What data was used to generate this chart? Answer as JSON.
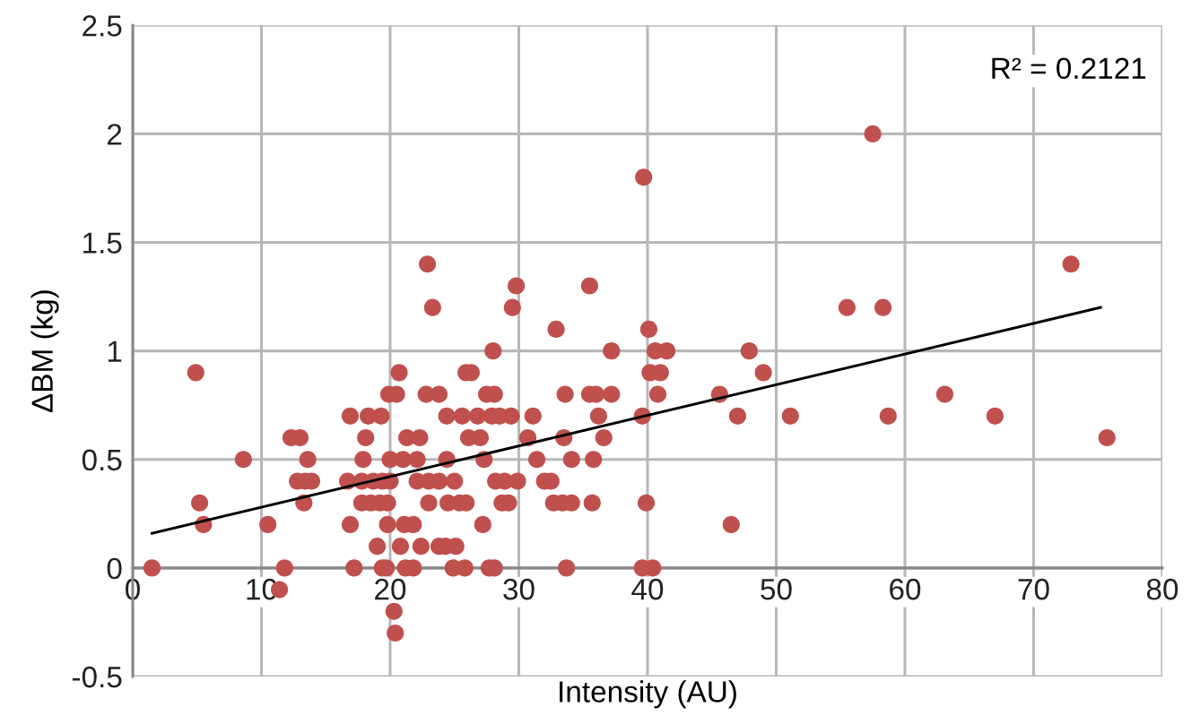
{
  "chart_data": {
    "type": "scatter",
    "xlabel": "Intensity (AU)",
    "ylabel": "ΔBM (kg)",
    "xlim": [
      0,
      80
    ],
    "xticks": [
      0,
      10,
      20,
      30,
      40,
      50,
      60,
      70,
      80
    ],
    "ylim": [
      -0.5,
      2.5
    ],
    "yticks": [
      -0.5,
      0,
      0.5,
      1,
      1.5,
      2,
      2.5
    ],
    "grid": true,
    "annotations": [
      "R² = 0.2121"
    ],
    "series": [
      {
        "marker": "circle",
        "color": "#c0504d",
        "x": [
          1.5,
          11.8,
          17.2,
          19.4,
          19.7,
          21.2,
          21.8,
          24.9,
          25.8,
          27.7,
          28.1,
          33.7,
          39.6,
          40.4,
          11.4,
          20.3,
          20.4,
          19.0,
          20.8,
          22.4,
          23.8,
          24.3,
          25.1,
          16.9,
          19.8,
          21.1,
          21.8,
          27.2,
          46.5,
          10.5,
          5.5,
          5.2,
          13.3,
          17.8,
          18.5,
          19.2,
          19.8,
          23.0,
          24.5,
          25.4,
          25.9,
          28.7,
          29.2,
          32.7,
          33.4,
          34.1,
          35.7,
          39.9,
          12.8,
          13.4,
          13.9,
          16.7,
          17.8,
          18.7,
          19.4,
          20.0,
          22.1,
          23.0,
          23.8,
          25.0,
          28.2,
          28.9,
          29.9,
          32.0,
          32.5,
          8.6,
          13.6,
          17.9,
          20.0,
          21.0,
          22.1,
          24.4,
          27.3,
          31.4,
          34.1,
          35.8,
          12.3,
          13.0,
          18.1,
          21.3,
          22.3,
          26.1,
          27.0,
          30.7,
          33.5,
          36.6,
          75.7,
          16.9,
          18.3,
          19.3,
          24.4,
          25.6,
          26.8,
          27.9,
          28.5,
          29.4,
          31.1,
          36.2,
          39.6,
          47.0,
          51.1,
          58.7,
          67.0,
          19.9,
          20.5,
          22.8,
          23.8,
          27.5,
          28.1,
          33.6,
          35.5,
          36.0,
          37.2,
          40.8,
          45.6,
          63.1,
          4.9,
          20.7,
          25.9,
          26.3,
          40.2,
          41.0,
          49.0,
          28.0,
          37.2,
          40.6,
          41.5,
          47.9,
          32.9,
          40.1,
          23.3,
          29.5,
          55.5,
          58.3,
          29.8,
          35.5,
          22.9,
          72.9,
          39.7,
          57.5
        ],
        "values": [
          0,
          0,
          0,
          0,
          0,
          0,
          0,
          0,
          0,
          0,
          0,
          0,
          0,
          0,
          -0.1,
          -0.2,
          -0.3,
          0.1,
          0.1,
          0.1,
          0.1,
          0.1,
          0.1,
          0.2,
          0.2,
          0.2,
          0.2,
          0.2,
          0.2,
          0.2,
          0.2,
          0.3,
          0.3,
          0.3,
          0.3,
          0.3,
          0.3,
          0.3,
          0.3,
          0.3,
          0.3,
          0.3,
          0.3,
          0.3,
          0.3,
          0.3,
          0.3,
          0.3,
          0.4,
          0.4,
          0.4,
          0.4,
          0.4,
          0.4,
          0.4,
          0.4,
          0.4,
          0.4,
          0.4,
          0.4,
          0.4,
          0.4,
          0.4,
          0.4,
          0.4,
          0.5,
          0.5,
          0.5,
          0.5,
          0.5,
          0.5,
          0.5,
          0.5,
          0.5,
          0.5,
          0.5,
          0.6,
          0.6,
          0.6,
          0.6,
          0.6,
          0.6,
          0.6,
          0.6,
          0.6,
          0.6,
          0.6,
          0.7,
          0.7,
          0.7,
          0.7,
          0.7,
          0.7,
          0.7,
          0.7,
          0.7,
          0.7,
          0.7,
          0.7,
          0.7,
          0.7,
          0.7,
          0.7,
          0.8,
          0.8,
          0.8,
          0.8,
          0.8,
          0.8,
          0.8,
          0.8,
          0.8,
          0.8,
          0.8,
          0.8,
          0.8,
          0.9,
          0.9,
          0.9,
          0.9,
          0.9,
          0.9,
          0.9,
          1.0,
          1.0,
          1.0,
          1.0,
          1.0,
          1.1,
          1.1,
          1.2,
          1.2,
          1.2,
          1.2,
          1.3,
          1.3,
          1.4,
          1.4,
          1.8,
          2.0
        ]
      },
      {
        "type": "line",
        "marker": "none",
        "color": "#000000",
        "x": [
          1.5,
          75.2
        ],
        "values": [
          0.16,
          1.2
        ]
      }
    ]
  }
}
